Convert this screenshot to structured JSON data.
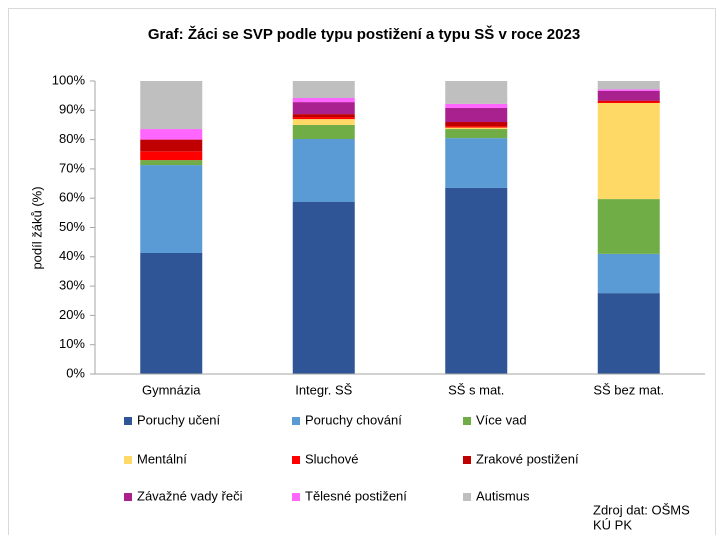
{
  "chart_data": {
    "type": "stacked_bar",
    "title": "Graf: Žáci se SVP podle typu postižení a typu SŠ v roce 2023",
    "ylabel": "podíl žáků (%)",
    "categories": [
      "Gymnázia",
      "Integr. SŠ",
      "SŠ s mat.",
      "SŠ bez mat."
    ],
    "series": [
      {
        "name": "Poruchy učení",
        "color": "#2f5597",
        "values": [
          41.3,
          58.7,
          63.5,
          27.6
        ]
      },
      {
        "name": "Poruchy chování",
        "color": "#5b9bd5",
        "values": [
          30,
          21.5,
          17,
          13.4
        ]
      },
      {
        "name": "Více vad",
        "color": "#70ad47",
        "values": [
          1.7,
          4.8,
          3.1,
          18.7
        ]
      },
      {
        "name": "Mentální",
        "color": "#ffd966",
        "values": [
          0,
          2,
          0.5,
          32.8
        ]
      },
      {
        "name": "Sluchové",
        "color": "#ff0000",
        "values": [
          3,
          0.7,
          0.5,
          0.5
        ]
      },
      {
        "name": "Zrakové postižení",
        "color": "#c00000",
        "values": [
          4,
          1,
          1.4,
          0.3
        ]
      },
      {
        "name": "Závažné vady řeči",
        "color": "#a9218e",
        "values": [
          0,
          4.1,
          4.8,
          3.3
        ]
      },
      {
        "name": "Tělesné postižení",
        "color": "#ff66ff",
        "values": [
          3.6,
          1.4,
          1.4,
          0.5
        ]
      },
      {
        "name": "Autismus",
        "color": "#bfbfbf",
        "values": [
          16.4,
          5.8,
          7.8,
          2.9
        ]
      }
    ],
    "ylim": [
      0,
      100
    ],
    "yticks": [
      {
        "value": 0,
        "label": "0%"
      },
      {
        "value": 10,
        "label": "10%"
      },
      {
        "value": 20,
        "label": "20%"
      },
      {
        "value": 30,
        "label": "30%"
      },
      {
        "value": 40,
        "label": "40%"
      },
      {
        "value": 50,
        "label": "50%"
      },
      {
        "value": 60,
        "label": "60%"
      },
      {
        "value": 70,
        "label": "70%"
      },
      {
        "value": 80,
        "label": "80%"
      },
      {
        "value": 90,
        "label": "90%"
      },
      {
        "value": 100,
        "label": "100%"
      }
    ],
    "grid": false,
    "legend": "bottom",
    "source": [
      "Zdroj dat: OŠMS",
      "KÚ PK"
    ]
  }
}
